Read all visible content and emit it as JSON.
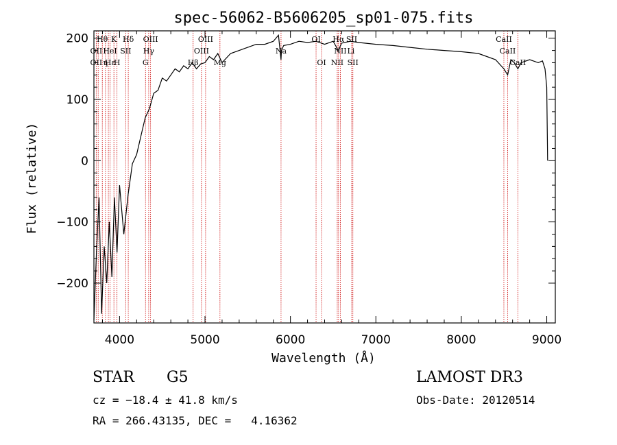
{
  "chart_data": {
    "type": "line",
    "title": "spec-56062-B5606205_sp01-075.fits",
    "xlabel": "Wavelength (Å)",
    "ylabel": "Flux (relative)",
    "xlim": [
      3700,
      9100
    ],
    "ylim": [
      -265,
      212
    ],
    "x_ticks": [
      4000,
      5000,
      6000,
      7000,
      8000,
      9000
    ],
    "x_tick_labels": [
      "4000",
      "5000",
      "6000",
      "7000",
      "8000",
      "9000"
    ],
    "y_ticks": [
      -200,
      -100,
      0,
      100,
      200
    ],
    "y_tick_labels": [
      "−200",
      "−100",
      "0",
      "100",
      "200"
    ],
    "series": [
      {
        "name": "spectrum",
        "x": [
          3700,
          3730,
          3760,
          3790,
          3820,
          3850,
          3880,
          3910,
          3940,
          3970,
          4000,
          4050,
          4100,
          4150,
          4200,
          4250,
          4300,
          4350,
          4400,
          4450,
          4500,
          4550,
          4600,
          4650,
          4700,
          4750,
          4800,
          4850,
          4900,
          4950,
          5000,
          5050,
          5100,
          5150,
          5200,
          5300,
          5400,
          5500,
          5600,
          5700,
          5800,
          5860,
          5890,
          5895,
          5920,
          6000,
          6100,
          6200,
          6300,
          6400,
          6500,
          6560,
          6600,
          6700,
          6800,
          7000,
          7200,
          7400,
          7600,
          7800,
          8000,
          8200,
          8400,
          8498,
          8542,
          8580,
          8620,
          8662,
          8700,
          8800,
          8900,
          8950,
          8980,
          9000,
          9010
        ],
        "y": [
          -260,
          -150,
          -60,
          -250,
          -140,
          -200,
          -100,
          -190,
          -60,
          -150,
          -40,
          -120,
          -55,
          -5,
          10,
          40,
          70,
          85,
          110,
          115,
          135,
          130,
          140,
          150,
          145,
          155,
          150,
          160,
          150,
          158,
          160,
          170,
          165,
          175,
          160,
          175,
          180,
          185,
          190,
          190,
          195,
          205,
          165,
          180,
          188,
          190,
          195,
          193,
          195,
          190,
          195,
          180,
          192,
          195,
          193,
          190,
          188,
          185,
          182,
          180,
          178,
          175,
          165,
          150,
          140,
          165,
          160,
          150,
          160,
          165,
          160,
          163,
          150,
          120,
          0
        ]
      }
    ],
    "lines": {
      "x": [
        3727,
        3750,
        3798,
        3835,
        3869,
        3889,
        3934,
        3970,
        4072,
        4102,
        4304,
        4341,
        4363,
        4861,
        4959,
        5007,
        5175,
        5890,
        6300,
        6364,
        6548,
        6563,
        6584,
        6717,
        6731,
        8498,
        8542,
        8662
      ],
      "labels": [
        {
          "text": "Hθ",
          "x": 3798,
          "row": 1
        },
        {
          "text": "K",
          "x": 3934,
          "row": 1
        },
        {
          "text": "Hδ",
          "x": 4102,
          "row": 1
        },
        {
          "text": "OIII",
          "x": 4363,
          "row": 1
        },
        {
          "text": "OIII",
          "x": 5007,
          "row": 1
        },
        {
          "text": "OI",
          "x": 6300,
          "row": 1
        },
        {
          "text": "Hα",
          "x": 6563,
          "row": 1
        },
        {
          "text": "SII",
          "x": 6717,
          "row": 1
        },
        {
          "text": "CaII",
          "x": 8498,
          "row": 1
        },
        {
          "text": "OII",
          "x": 3727,
          "row": 2
        },
        {
          "text": "HeI",
          "x": 3889,
          "row": 2
        },
        {
          "text": "SII",
          "x": 4072,
          "row": 2
        },
        {
          "text": "Hγ",
          "x": 4341,
          "row": 2
        },
        {
          "text": "OIII",
          "x": 4959,
          "row": 2
        },
        {
          "text": "Na",
          "x": 5890,
          "row": 2
        },
        {
          "text": "NII",
          "x": 6584,
          "row": 2
        },
        {
          "text": "Li",
          "x": 6708,
          "row": 2
        },
        {
          "text": "CaII",
          "x": 8542,
          "row": 2
        },
        {
          "text": "OII",
          "x": 3727,
          "row": 3
        },
        {
          "text": "Hε",
          "x": 3889,
          "row": 3
        },
        {
          "text": "η",
          "x": 3835,
          "row": 3
        },
        {
          "text": "H",
          "x": 3970,
          "row": 3
        },
        {
          "text": "G",
          "x": 4304,
          "row": 3
        },
        {
          "text": "Hβ",
          "x": 4861,
          "row": 3
        },
        {
          "text": "Mg",
          "x": 5175,
          "row": 3
        },
        {
          "text": "OI",
          "x": 6364,
          "row": 3
        },
        {
          "text": "NII",
          "x": 6548,
          "row": 3
        },
        {
          "text": "SII",
          "x": 6731,
          "row": 3
        },
        {
          "text": "CaII",
          "x": 8662,
          "row": 3
        }
      ]
    }
  },
  "info": {
    "object_class": "STAR",
    "subclass": "G5",
    "survey": "LAMOST DR3",
    "redshift": "cz = −18.4 ± 41.8 km/s",
    "obs_date": "Obs-Date: 20120514",
    "coords": "RA = 266.43135, DEC =   4.16362"
  },
  "colors": {
    "spectrum": "#000000",
    "lines": "#cc0000",
    "axes": "#000000"
  }
}
